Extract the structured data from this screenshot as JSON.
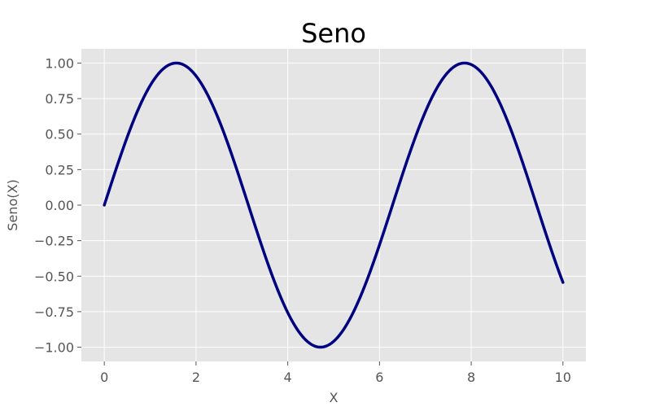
{
  "chart_data": {
    "type": "line",
    "title": "Seno",
    "xlabel": "X",
    "ylabel": "Seno(X)",
    "xlim": [
      -0.5,
      10.5
    ],
    "ylim": [
      -1.1,
      1.1
    ],
    "grid": true,
    "legend": "none",
    "xticks": [
      0,
      2,
      4,
      6,
      8,
      10
    ],
    "xtick_labels": [
      "0",
      "2",
      "4",
      "6",
      "8",
      "10"
    ],
    "yticks": [
      1.0,
      0.75,
      0.5,
      0.25,
      0.0,
      -0.25,
      -0.5,
      -0.75,
      -1.0
    ],
    "ytick_labels": [
      "1.00",
      "0.75",
      "0.50",
      "0.25",
      "0.00",
      "−0.25",
      "−0.50",
      "−0.75",
      "−1.00"
    ],
    "colors": {
      "line": "#000080",
      "plot_background": "#e5e5e5",
      "grid": "#ffffff"
    },
    "series": [
      {
        "function": "sin",
        "x_start": 0,
        "x_end": 10,
        "x": [
          0,
          0.5,
          1,
          1.5,
          1.571,
          2,
          2.5,
          3,
          3.5,
          4,
          4.5,
          4.712,
          5,
          5.5,
          6,
          6.5,
          7,
          7.5,
          7.854,
          8,
          8.5,
          9,
          9.5,
          10
        ],
        "y": [
          0,
          0.479,
          0.841,
          0.997,
          1.0,
          0.909,
          0.598,
          0.141,
          -0.351,
          -0.757,
          -0.978,
          -1.0,
          -0.959,
          -0.706,
          -0.279,
          0.215,
          0.657,
          0.938,
          1.0,
          0.989,
          0.798,
          0.412,
          -0.075,
          -0.544
        ]
      }
    ]
  }
}
